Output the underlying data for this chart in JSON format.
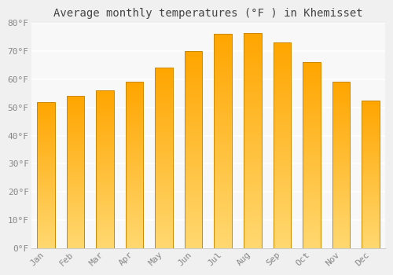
{
  "title": "Average monthly temperatures (°F ) in Khemisset",
  "months": [
    "Jan",
    "Feb",
    "Mar",
    "Apr",
    "May",
    "Jun",
    "Jul",
    "Aug",
    "Sep",
    "Oct",
    "Nov",
    "Dec"
  ],
  "values": [
    52,
    54,
    56,
    59,
    64,
    70,
    76,
    76.5,
    73,
    66,
    59,
    52.5
  ],
  "ylim": [
    0,
    80
  ],
  "yticks": [
    0,
    10,
    20,
    30,
    40,
    50,
    60,
    70,
    80
  ],
  "ytick_labels": [
    "0°F",
    "10°F",
    "20°F",
    "30°F",
    "40°F",
    "50°F",
    "60°F",
    "70°F",
    "80°F"
  ],
  "bar_color_top": "#FFA500",
  "bar_color_bottom": "#FFD870",
  "bar_edge_color": "#CC8800",
  "background_color": "#f0f0f0",
  "plot_background": "#f8f8f8",
  "grid_color": "#ffffff",
  "title_fontsize": 10,
  "tick_fontsize": 8,
  "tick_color": "#888888",
  "title_color": "#444444",
  "font_family": "monospace",
  "bar_width": 0.6,
  "gradient_steps": 100
}
